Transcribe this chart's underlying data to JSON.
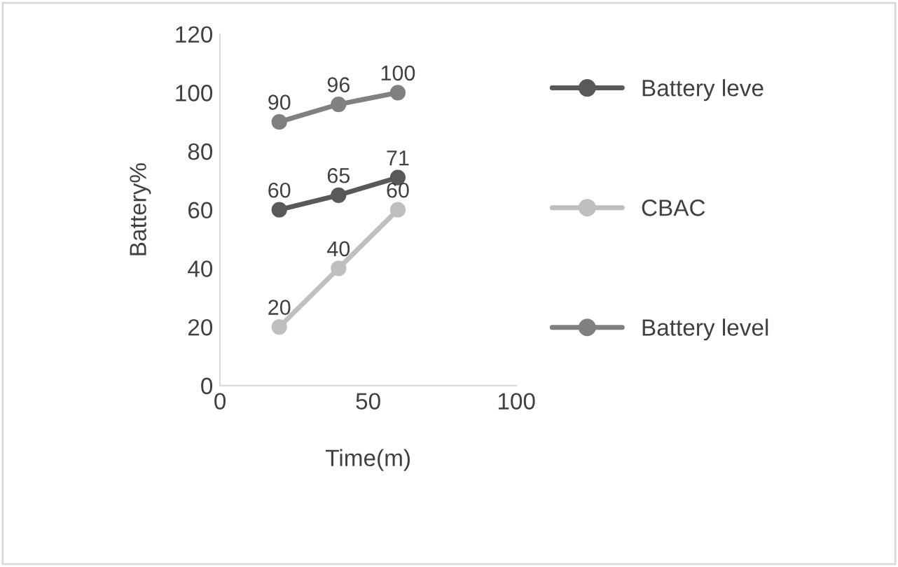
{
  "chart_data": {
    "type": "line",
    "xlabel": "Time(m)",
    "ylabel": "Battery%",
    "x": [
      20,
      40,
      60
    ],
    "series": [
      {
        "name": "Battery leve",
        "color": "#595959",
        "values": [
          60,
          65,
          71
        ]
      },
      {
        "name": "CBAC",
        "color": "#bfbfbf",
        "values": [
          20,
          40,
          60
        ]
      },
      {
        "name": "Battery level",
        "color": "#808080",
        "values": [
          90,
          96,
          100
        ]
      }
    ],
    "xlim": [
      0,
      100
    ],
    "xticks": [
      0,
      50,
      100
    ],
    "ylim": [
      0,
      120
    ],
    "yticks": [
      0,
      20,
      40,
      60,
      80,
      100,
      120
    ],
    "grid": false,
    "legend": "right",
    "marker": "circle",
    "line_style": "solid",
    "data_labels": true
  }
}
